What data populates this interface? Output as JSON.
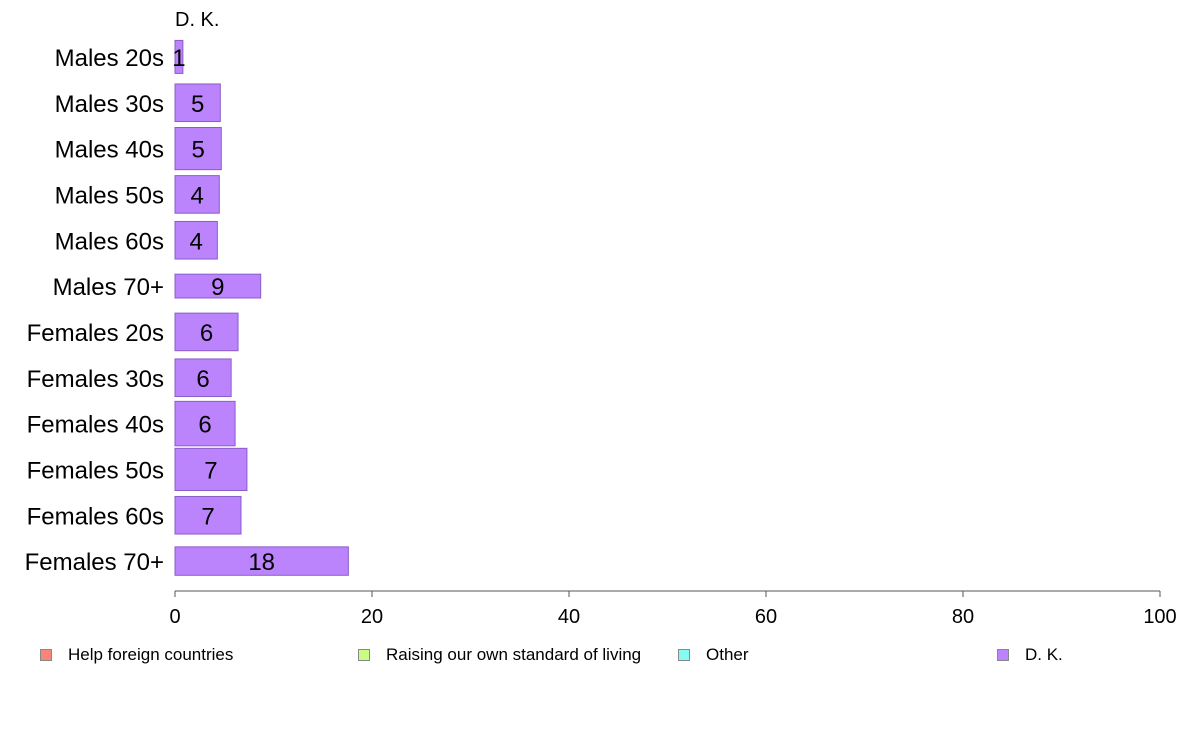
{
  "chart_data": {
    "type": "bar",
    "orientation": "horizontal",
    "stacked": true,
    "series_label_top": "D. K.",
    "categories": [
      "Males 20s",
      "Males 30s",
      "Males 40s",
      "Males 50s",
      "Males 60s",
      "Males 70+",
      "Females 20s",
      "Females 30s",
      "Females 40s",
      "Females 50s",
      "Females 60s",
      "Females 70+"
    ],
    "bar_weights": [
      0.72,
      0.82,
      0.92,
      0.82,
      0.82,
      0.52,
      0.82,
      0.82,
      0.97,
      0.92,
      0.82,
      0.62
    ],
    "series": [
      {
        "name": "Help foreign countries",
        "values": [
          0,
          0,
          0,
          0,
          0,
          0,
          0,
          0,
          0,
          0,
          0,
          0
        ],
        "color": "#f8847c"
      },
      {
        "name": "Raising our own standard of living",
        "values": [
          0,
          0,
          0,
          0,
          0,
          0,
          0,
          0,
          0,
          0,
          0,
          0
        ],
        "color": "#c8fc84"
      },
      {
        "name": "Other",
        "values": [
          0,
          0,
          0,
          0,
          0,
          0,
          0,
          0,
          0,
          0,
          0,
          0
        ],
        "color": "#84fcf4"
      },
      {
        "name": "D. K.",
        "values": [
          0.8,
          4.6,
          4.7,
          4.5,
          4.3,
          8.7,
          6.4,
          5.7,
          6.1,
          7.3,
          6.7,
          17.6
        ],
        "labels": [
          "1",
          "5",
          "5",
          "4",
          "4",
          "9",
          "6",
          "6",
          "6",
          "7",
          "7",
          "18"
        ],
        "color": "#bc84fc"
      }
    ],
    "xlim": [
      0,
      100
    ],
    "xticks": [
      0,
      20,
      40,
      60,
      80,
      100
    ],
    "legend_position": "bottom"
  },
  "legend": [
    {
      "label": "Help foreign countries",
      "color": "#f8847c"
    },
    {
      "label": "Raising our own standard of living",
      "color": "#c8fc84"
    },
    {
      "label": "Other",
      "color": "#84fcf4"
    },
    {
      "label": "D. K.",
      "color": "#bc84fc"
    }
  ]
}
